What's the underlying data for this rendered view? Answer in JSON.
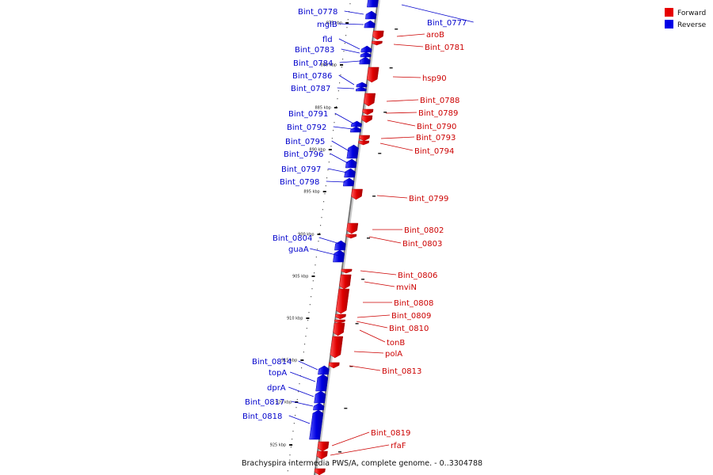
{
  "legend": {
    "forward_label": "Forward",
    "reverse_label": "Reverse",
    "forward_color": "#e60000",
    "reverse_color": "#0000e6"
  },
  "caption": "Brachyspira intermedia PWS/A, complete genome. - 0..3304788",
  "axis_color": "#888888",
  "tick_labels": [
    "875 kbp",
    "880 kbp",
    "885 kbp",
    "890 kbp",
    "895 kbp",
    "900 kbp",
    "905 kbp",
    "910 kbp",
    "915 kbp",
    "920 kbp",
    "925 kbp"
  ],
  "genes": [
    {
      "name": "Bint_0777",
      "strand": "reverse"
    },
    {
      "name": "Bint_0778",
      "strand": "reverse"
    },
    {
      "name": "mglB",
      "strand": "reverse"
    },
    {
      "name": "aroB",
      "strand": "forward"
    },
    {
      "name": "Bint_0781",
      "strand": "forward"
    },
    {
      "name": "fld",
      "strand": "reverse"
    },
    {
      "name": "Bint_0783",
      "strand": "reverse"
    },
    {
      "name": "Bint_0784",
      "strand": "reverse"
    },
    {
      "name": "hsp90",
      "strand": "forward"
    },
    {
      "name": "Bint_0786",
      "strand": "reverse"
    },
    {
      "name": "Bint_0787",
      "strand": "reverse"
    },
    {
      "name": "Bint_0788",
      "strand": "forward"
    },
    {
      "name": "Bint_0789",
      "strand": "forward"
    },
    {
      "name": "Bint_0790",
      "strand": "forward"
    },
    {
      "name": "Bint_0791",
      "strand": "reverse"
    },
    {
      "name": "Bint_0792",
      "strand": "reverse"
    },
    {
      "name": "Bint_0793",
      "strand": "forward"
    },
    {
      "name": "Bint_0794",
      "strand": "forward"
    },
    {
      "name": "Bint_0795",
      "strand": "reverse"
    },
    {
      "name": "Bint_0796",
      "strand": "reverse"
    },
    {
      "name": "Bint_0797",
      "strand": "reverse"
    },
    {
      "name": "Bint_0798",
      "strand": "reverse"
    },
    {
      "name": "Bint_0799",
      "strand": "forward"
    },
    {
      "name": "Bint_0802",
      "strand": "forward"
    },
    {
      "name": "Bint_0803",
      "strand": "forward"
    },
    {
      "name": "Bint_0804",
      "strand": "reverse"
    },
    {
      "name": "guaA",
      "strand": "reverse"
    },
    {
      "name": "Bint_0806",
      "strand": "forward"
    },
    {
      "name": "mviN",
      "strand": "forward"
    },
    {
      "name": "Bint_0808",
      "strand": "forward"
    },
    {
      "name": "Bint_0809",
      "strand": "forward"
    },
    {
      "name": "Bint_0810",
      "strand": "forward"
    },
    {
      "name": "tonB",
      "strand": "forward"
    },
    {
      "name": "polA",
      "strand": "forward"
    },
    {
      "name": "Bint_0813",
      "strand": "forward"
    },
    {
      "name": "Bint_0814",
      "strand": "reverse"
    },
    {
      "name": "topA",
      "strand": "reverse"
    },
    {
      "name": "dprA",
      "strand": "reverse"
    },
    {
      "name": "Bint_0817",
      "strand": "reverse"
    },
    {
      "name": "Bint_0818",
      "strand": "reverse"
    },
    {
      "name": "Bint_0819",
      "strand": "forward"
    },
    {
      "name": "rfaF",
      "strand": "forward"
    }
  ]
}
